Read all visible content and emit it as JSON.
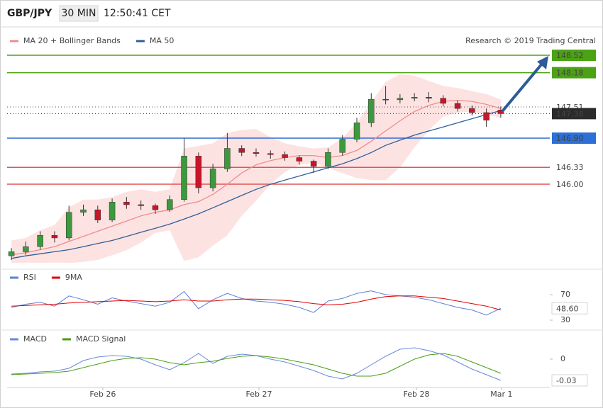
{
  "header": {
    "symbol": "GBP/JPY",
    "timeframe": "30 MIN",
    "time": "12:50:41 CET"
  },
  "chart_data": [
    {
      "type": "candlestick",
      "credit": "Research © 2019 Trading Central",
      "ylim": [
        144.45,
        148.77
      ],
      "up_color": "#3c9a3c",
      "down_color": "#c8152a",
      "open": [
        144.6,
        144.68,
        144.78,
        145.0,
        144.95,
        145.45,
        145.5,
        145.3,
        145.65,
        145.6,
        145.58,
        145.5,
        145.7,
        146.55,
        145.93,
        146.3,
        146.7,
        146.62,
        146.6,
        146.58,
        146.52,
        146.45,
        146.35,
        146.62,
        146.88,
        147.2,
        147.66,
        147.65,
        147.68,
        147.7,
        147.68,
        147.58,
        147.48,
        147.4,
        147.45
      ],
      "high": [
        144.75,
        144.88,
        145.08,
        145.08,
        145.58,
        145.6,
        145.58,
        145.72,
        145.75,
        145.68,
        145.62,
        145.78,
        146.9,
        146.62,
        146.4,
        147.0,
        146.76,
        146.7,
        146.66,
        146.64,
        146.56,
        146.48,
        146.7,
        146.96,
        147.3,
        147.78,
        147.92,
        147.76,
        147.78,
        147.8,
        147.74,
        147.64,
        147.54,
        147.48,
        147.52
      ],
      "low": [
        144.52,
        144.62,
        144.72,
        144.86,
        144.9,
        145.38,
        145.24,
        145.26,
        145.52,
        145.5,
        145.42,
        145.46,
        145.66,
        145.82,
        145.86,
        146.24,
        146.55,
        146.54,
        146.5,
        146.46,
        146.38,
        146.22,
        146.3,
        146.56,
        146.82,
        147.12,
        147.56,
        147.58,
        147.62,
        147.6,
        147.52,
        147.42,
        147.34,
        147.12,
        147.3
      ],
      "close": [
        144.68,
        144.78,
        145.0,
        144.95,
        145.45,
        145.5,
        145.3,
        145.65,
        145.6,
        145.58,
        145.5,
        145.7,
        146.55,
        145.93,
        146.3,
        146.7,
        146.62,
        146.6,
        146.58,
        146.52,
        146.45,
        146.35,
        146.62,
        146.88,
        147.2,
        147.66,
        147.65,
        147.68,
        147.7,
        147.68,
        147.58,
        147.48,
        147.4,
        147.25,
        147.38
      ],
      "band": {
        "color": "#fde2e2",
        "upper": [
          144.9,
          144.95,
          145.1,
          145.2,
          145.55,
          145.7,
          145.7,
          145.75,
          145.85,
          145.9,
          145.85,
          145.9,
          146.7,
          146.75,
          146.8,
          147.0,
          147.06,
          147.08,
          146.92,
          146.8,
          146.74,
          146.7,
          146.72,
          146.9,
          147.2,
          147.6,
          148.0,
          148.15,
          148.12,
          148.02,
          147.92,
          147.88,
          147.82,
          147.76,
          147.66
        ],
        "lower": [
          144.46,
          144.47,
          144.46,
          144.47,
          144.46,
          144.48,
          144.52,
          144.61,
          144.71,
          144.86,
          145.05,
          145.1,
          144.5,
          144.57,
          144.8,
          145.0,
          145.38,
          145.68,
          146.0,
          146.24,
          146.38,
          146.42,
          146.32,
          146.22,
          146.12,
          146.08,
          146.08,
          146.33,
          146.72,
          147.06,
          147.32,
          147.4,
          147.42,
          147.36,
          147.3
        ]
      },
      "series": [
        {
          "name": "MA 20 + Bollinger Bands",
          "color": "#f08c8c",
          "values": [
            144.62,
            144.66,
            144.72,
            144.78,
            144.88,
            144.98,
            145.08,
            145.18,
            145.28,
            145.38,
            145.45,
            145.5,
            145.6,
            145.66,
            145.8,
            146.0,
            146.22,
            146.38,
            146.46,
            146.52,
            146.56,
            146.56,
            146.52,
            146.56,
            146.66,
            146.84,
            147.04,
            147.24,
            147.42,
            147.54,
            147.62,
            147.64,
            147.62,
            147.56,
            147.48
          ]
        },
        {
          "name": "MA 50",
          "color": "#2f5f98",
          "values": [
            144.55,
            144.6,
            144.64,
            144.68,
            144.72,
            144.78,
            144.84,
            144.9,
            144.98,
            145.06,
            145.14,
            145.22,
            145.32,
            145.42,
            145.54,
            145.66,
            145.78,
            145.9,
            146.0,
            146.08,
            146.16,
            146.24,
            146.32,
            146.4,
            146.5,
            146.62,
            146.76,
            146.86,
            146.96,
            147.04,
            147.12,
            147.2,
            147.28,
            147.36,
            147.44
          ]
        }
      ],
      "levels": [
        {
          "value": 148.52,
          "color": "#4ba213",
          "box": true,
          "dash": false
        },
        {
          "value": 148.18,
          "color": "#4ba213",
          "box": true,
          "dash": false
        },
        {
          "value": 147.51,
          "color": "#555555",
          "box": false,
          "dash": true
        },
        {
          "value": 147.38,
          "color": "#2b2b2b",
          "box": true,
          "dash": true
        },
        {
          "value": 146.9,
          "label": "146.90",
          "color": "#2c6fd6",
          "box": true,
          "dash": false
        },
        {
          "value": 146.33,
          "color": "#e05555",
          "box": false,
          "dash": false
        },
        {
          "value": 146.0,
          "label": "146.00",
          "color": "#e05555",
          "box": false,
          "dash": false
        }
      ]
    },
    {
      "type": "line",
      "ylim": [
        20,
        90
      ],
      "yticks": [
        30,
        70
      ],
      "series": [
        {
          "name": "RSI",
          "color": "#5b7fd9",
          "values": [
            50,
            55,
            58,
            52,
            68,
            62,
            55,
            65,
            60,
            56,
            52,
            58,
            75,
            48,
            62,
            72,
            64,
            60,
            58,
            55,
            50,
            42,
            60,
            64,
            72,
            76,
            70,
            68,
            66,
            62,
            56,
            50,
            46,
            38,
            48.6
          ]
        },
        {
          "name": "9MA",
          "color": "#e00000",
          "values": [
            52,
            53,
            54,
            55,
            57,
            58,
            59,
            60,
            61,
            60,
            59,
            60,
            62,
            60,
            60,
            62,
            63,
            63,
            62,
            61,
            59,
            56,
            54,
            55,
            58,
            63,
            67,
            68,
            68,
            66,
            64,
            60,
            56,
            52,
            46
          ]
        }
      ],
      "markers": [
        {
          "value": 48.6,
          "label": "48.60",
          "color": "#3a62c8"
        }
      ]
    },
    {
      "type": "line",
      "ylim": [
        -0.04,
        0.035
      ],
      "yticks": [
        0
      ],
      "xlim": [
        -0.2,
        34.3
      ],
      "xticks": [
        {
          "value": 6.35,
          "label": "Feb 26"
        },
        {
          "value": 17.2,
          "label": "Feb 27"
        },
        {
          "value": 28.14,
          "label": "Feb 28"
        },
        {
          "value": 34.05,
          "label": "Mar 1"
        }
      ],
      "series": [
        {
          "name": "MACD",
          "color": "#6a8ad8",
          "values": [
            -0.021,
            -0.02,
            -0.018,
            -0.017,
            -0.013,
            -0.002,
            0.003,
            0.005,
            0.004,
            0.0,
            -0.008,
            -0.015,
            -0.005,
            0.008,
            -0.006,
            0.004,
            0.007,
            0.005,
            0.0,
            -0.004,
            -0.01,
            -0.016,
            -0.024,
            -0.028,
            -0.02,
            -0.008,
            0.004,
            0.014,
            0.016,
            0.012,
            0.006,
            -0.004,
            -0.014,
            -0.022,
            -0.03
          ]
        },
        {
          "name": "MACD Signal",
          "color": "#4a9e14",
          "values": [
            -0.022,
            -0.021,
            -0.02,
            -0.019,
            -0.017,
            -0.012,
            -0.007,
            -0.002,
            0.001,
            0.002,
            0.0,
            -0.005,
            -0.008,
            -0.005,
            -0.003,
            0.001,
            0.004,
            0.005,
            0.003,
            0.0,
            -0.004,
            -0.008,
            -0.014,
            -0.02,
            -0.024,
            -0.024,
            -0.02,
            -0.01,
            0.0,
            0.006,
            0.008,
            0.004,
            -0.004,
            -0.012,
            -0.02
          ]
        }
      ],
      "markers": [
        {
          "value": -0.03,
          "color": "#3a62c8"
        }
      ]
    }
  ]
}
